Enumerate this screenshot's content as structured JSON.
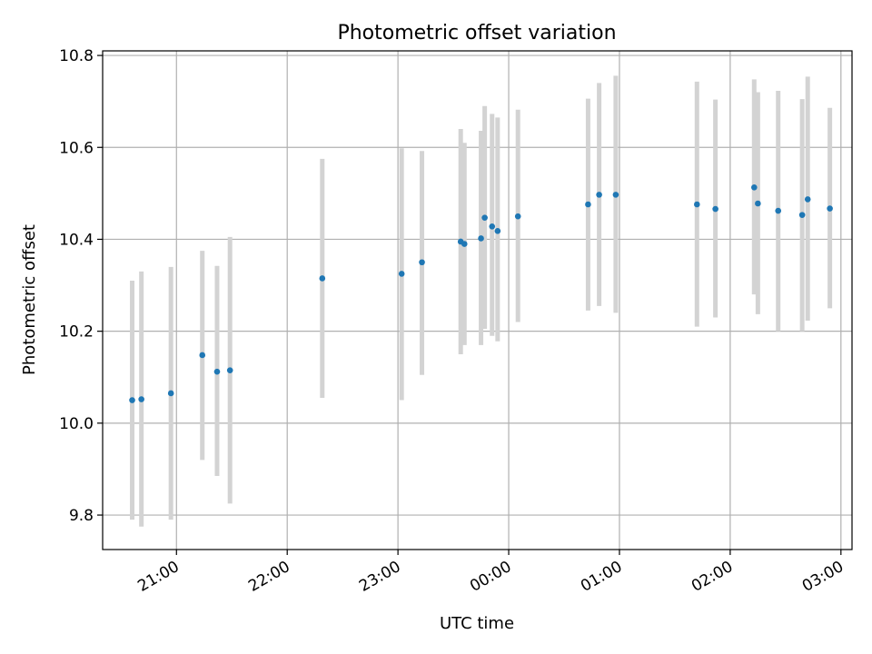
{
  "chart_data": {
    "type": "scatter",
    "title": "Photometric offset variation",
    "xlabel": "UTC time",
    "ylabel": "Photometric offset",
    "ylim": [
      9.725,
      10.81
    ],
    "xlim": [
      "20:20",
      "03:06"
    ],
    "grid": true,
    "legend": "none",
    "x_ticks": [
      "21:00",
      "22:00",
      "23:00",
      "00:00",
      "01:00",
      "02:00",
      "03:00"
    ],
    "y_ticks": [
      9.8,
      10.0,
      10.2,
      10.4,
      10.6,
      10.8
    ],
    "point_color": "#1f77b4",
    "errorbar_color": "#d3d3d3",
    "points": [
      {
        "x": "20:36",
        "y": 10.05,
        "lo": 9.79,
        "hi": 10.31
      },
      {
        "x": "20:41",
        "y": 10.052,
        "lo": 9.775,
        "hi": 10.33
      },
      {
        "x": "20:57",
        "y": 10.065,
        "lo": 9.79,
        "hi": 10.34
      },
      {
        "x": "21:14",
        "y": 10.148,
        "lo": 9.92,
        "hi": 10.375
      },
      {
        "x": "21:22",
        "y": 10.112,
        "lo": 9.885,
        "hi": 10.342
      },
      {
        "x": "21:29",
        "y": 10.115,
        "lo": 9.825,
        "hi": 10.405
      },
      {
        "x": "22:19",
        "y": 10.315,
        "lo": 10.055,
        "hi": 10.575
      },
      {
        "x": "23:02",
        "y": 10.325,
        "lo": 10.05,
        "hi": 10.598
      },
      {
        "x": "23:13",
        "y": 10.35,
        "lo": 10.105,
        "hi": 10.592
      },
      {
        "x": "23:34",
        "y": 10.395,
        "lo": 10.15,
        "hi": 10.64
      },
      {
        "x": "23:36",
        "y": 10.39,
        "lo": 10.17,
        "hi": 10.61
      },
      {
        "x": "23:45",
        "y": 10.402,
        "lo": 10.17,
        "hi": 10.636
      },
      {
        "x": "23:47",
        "y": 10.447,
        "lo": 10.205,
        "hi": 10.69
      },
      {
        "x": "23:51",
        "y": 10.428,
        "lo": 10.19,
        "hi": 10.673
      },
      {
        "x": "23:54",
        "y": 10.418,
        "lo": 10.178,
        "hi": 10.665
      },
      {
        "x": "00:05",
        "y": 10.45,
        "lo": 10.22,
        "hi": 10.682
      },
      {
        "x": "00:43",
        "y": 10.476,
        "lo": 10.245,
        "hi": 10.706
      },
      {
        "x": "00:49",
        "y": 10.497,
        "lo": 10.255,
        "hi": 10.74
      },
      {
        "x": "00:58",
        "y": 10.497,
        "lo": 10.24,
        "hi": 10.756
      },
      {
        "x": "01:42",
        "y": 10.476,
        "lo": 10.21,
        "hi": 10.743
      },
      {
        "x": "01:52",
        "y": 10.466,
        "lo": 10.23,
        "hi": 10.704
      },
      {
        "x": "02:13",
        "y": 10.513,
        "lo": 10.28,
        "hi": 10.748
      },
      {
        "x": "02:15",
        "y": 10.478,
        "lo": 10.237,
        "hi": 10.72
      },
      {
        "x": "02:26",
        "y": 10.462,
        "lo": 10.2,
        "hi": 10.723
      },
      {
        "x": "02:39",
        "y": 10.453,
        "lo": 10.2,
        "hi": 10.705
      },
      {
        "x": "02:42",
        "y": 10.487,
        "lo": 10.223,
        "hi": 10.754
      },
      {
        "x": "02:54",
        "y": 10.467,
        "lo": 10.25,
        "hi": 10.686
      }
    ]
  }
}
